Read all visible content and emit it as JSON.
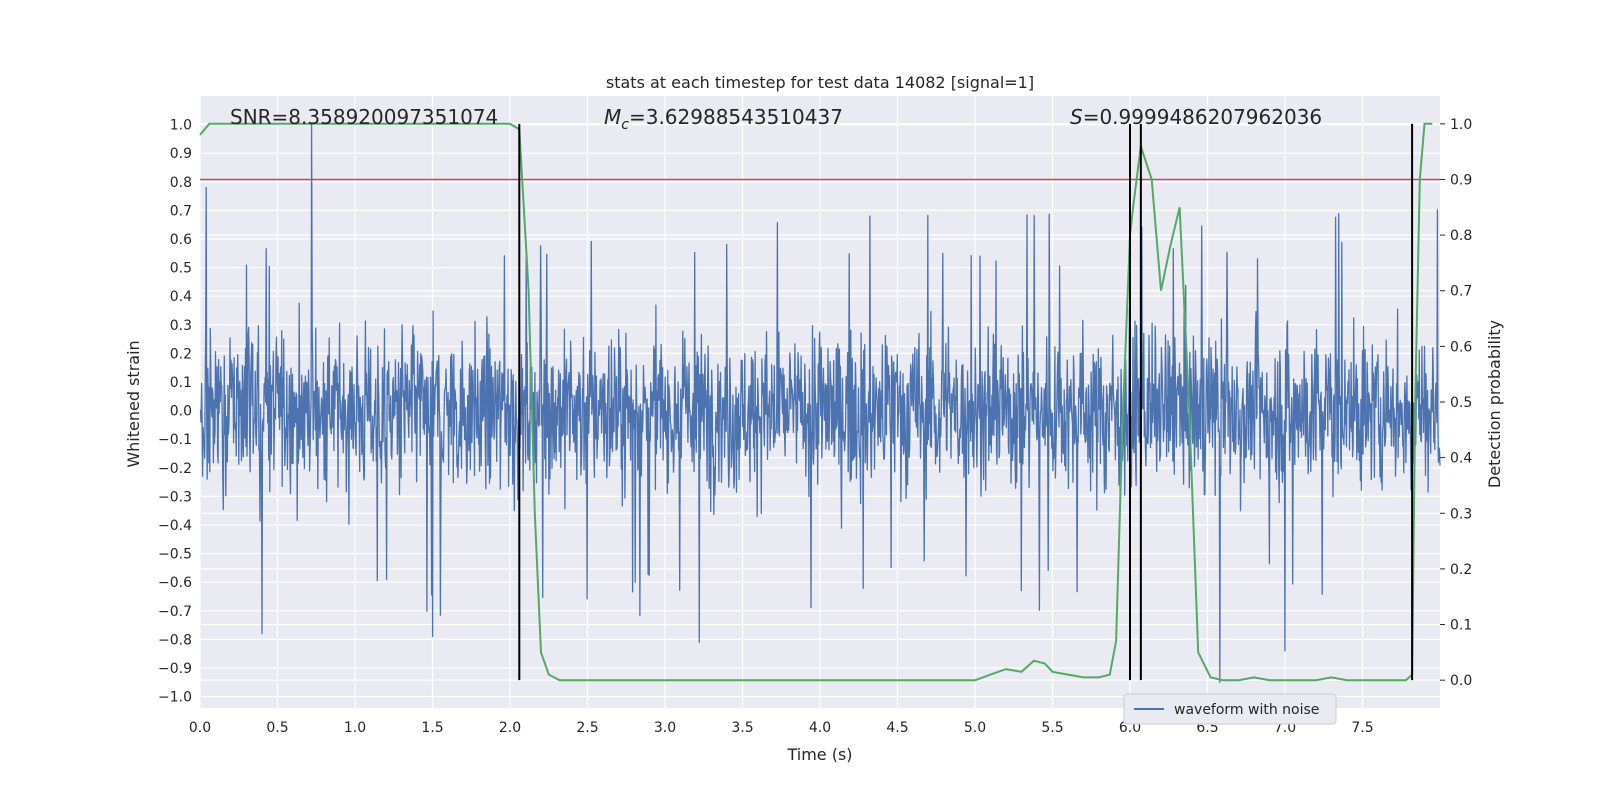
{
  "chart_data": {
    "type": "line",
    "title": "stats at each timestep for test data 14082 [signal=1]",
    "xlabel": "Time (s)",
    "ylabel": "Whitened strain",
    "y2label": "Detection probability",
    "xlim": [
      0.0,
      8.0
    ],
    "ylim": [
      -1.04,
      1.1
    ],
    "y2lim": [
      -0.05,
      1.05
    ],
    "xticks": [
      "0.0",
      "0.5",
      "1.0",
      "1.5",
      "2.0",
      "2.5",
      "3.0",
      "3.5",
      "4.0",
      "4.5",
      "5.0",
      "5.5",
      "6.0",
      "6.5",
      "7.0",
      "7.5"
    ],
    "yticks": [
      "1.0",
      "0.9",
      "0.8",
      "0.7",
      "0.6",
      "0.5",
      "0.4",
      "0.3",
      "0.2",
      "0.1",
      "0.0",
      "−0.1",
      "−0.2",
      "−0.3",
      "−0.4",
      "−0.5",
      "−0.6",
      "−0.7",
      "−0.8",
      "−0.9",
      "−1.0"
    ],
    "y2ticks": [
      "1.0",
      "0.9",
      "0.8",
      "0.7",
      "0.6",
      "0.5",
      "0.4",
      "0.3",
      "0.2",
      "0.1",
      "0.0"
    ],
    "annotations": {
      "snr": "SNR=8.358920097351074",
      "mc": "=3.62988543510437",
      "mc_symbol": "M",
      "mc_sub": "c",
      "s": "=0.9999486207962036",
      "s_symbol": "S"
    },
    "threshold": {
      "y2": 0.9,
      "color": "#c44e52"
    },
    "vertical_lines_x": [
      2.06,
      6.0,
      6.07,
      7.82
    ],
    "legend": {
      "label": "waveform with noise",
      "position": "bottom-right"
    },
    "series": [
      {
        "name": "waveform with noise",
        "axis": "left",
        "color": "#4c72b0",
        "envelope": {
          "t_start": 0.0,
          "t_end": 8.0,
          "typical_amplitude": 0.42,
          "peaks": [
            [
              0.72,
              1.0
            ],
            [
              0.04,
              0.78
            ],
            [
              6.58,
              -0.95
            ],
            [
              3.22,
              -0.81
            ],
            [
              1.5,
              -0.79
            ],
            [
              0.4,
              -0.78
            ],
            [
              7.0,
              -0.84
            ]
          ]
        }
      },
      {
        "name": "detection probability",
        "axis": "right",
        "color": "#55a868",
        "x": [
          0.0,
          0.06,
          0.3,
          0.6,
          0.9,
          1.2,
          1.5,
          1.8,
          1.95,
          2.0,
          2.06,
          2.12,
          2.16,
          2.2,
          2.25,
          2.32,
          2.4,
          2.6,
          3.0,
          3.5,
          4.0,
          4.5,
          5.0,
          5.05,
          5.1,
          5.2,
          5.3,
          5.38,
          5.45,
          5.5,
          5.6,
          5.7,
          5.8,
          5.87,
          5.91,
          5.95,
          6.0,
          6.02,
          6.07,
          6.14,
          6.2,
          6.26,
          6.32,
          6.38,
          6.44,
          6.52,
          6.6,
          6.7,
          6.8,
          6.9,
          7.0,
          7.1,
          7.2,
          7.3,
          7.4,
          7.5,
          7.6,
          7.7,
          7.78,
          7.82,
          7.84,
          7.87,
          7.9,
          7.95
        ],
        "y": [
          0.98,
          1.0,
          1.0,
          1.0,
          1.0,
          1.0,
          1.0,
          1.0,
          1.0,
          1.0,
          0.99,
          0.7,
          0.3,
          0.05,
          0.01,
          0.0,
          0.0,
          0.0,
          0.0,
          0.0,
          0.0,
          0.0,
          0.0,
          0.005,
          0.01,
          0.02,
          0.015,
          0.035,
          0.03,
          0.015,
          0.01,
          0.005,
          0.005,
          0.01,
          0.07,
          0.45,
          0.8,
          0.85,
          0.96,
          0.9,
          0.7,
          0.78,
          0.85,
          0.5,
          0.05,
          0.005,
          0.0,
          0.0,
          0.005,
          0.0,
          0.0,
          0.0,
          0.0,
          0.005,
          0.0,
          0.0,
          0.0,
          0.0,
          0.0,
          0.01,
          0.5,
          0.9,
          1.0,
          1.0
        ]
      }
    ]
  }
}
